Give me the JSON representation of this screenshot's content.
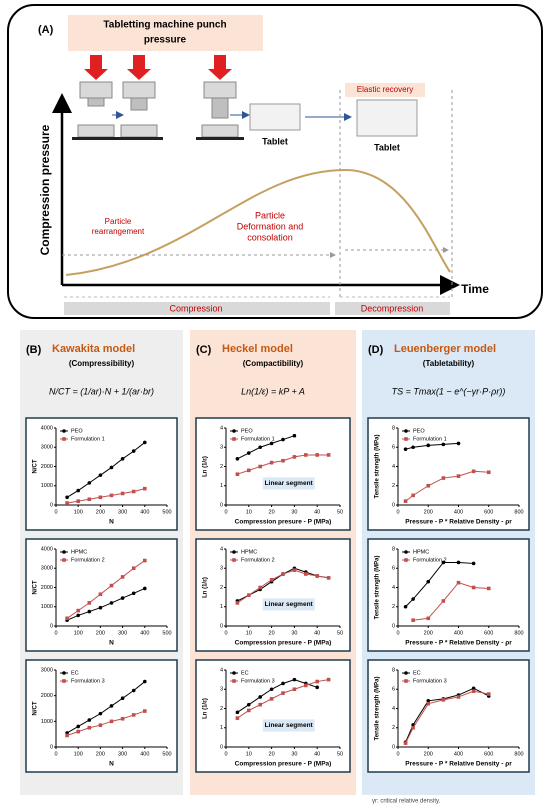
{
  "panel_a": {
    "label": "(A)",
    "title": [
      "Tabletting machine punch",
      "pressure"
    ],
    "y_axis": "Compression pressure",
    "x_axis": "Time",
    "tablet_1": "Tablet",
    "elastic_recovery": "Elastic recovery",
    "tablet_2": "Tablet",
    "phase_1": [
      "Particle",
      "rearrangement"
    ],
    "phase_2": [
      "Particle",
      "Deformation and",
      "consolation"
    ],
    "stage_1": "Compression",
    "stage_2": "Decompression"
  },
  "columns": [
    {
      "label": "(B)",
      "title": "Kawakita model",
      "subtitle": "(Compressibility)",
      "equation": "N/CT = (1/ar)·N + 1/(ar·br)",
      "charts": [
        {
          "xlabel": "N",
          "ylabel": "N/CT",
          "xlim": [
            0,
            500
          ],
          "xticks": [
            0,
            100,
            200,
            300,
            400,
            500
          ],
          "ylim": [
            0,
            4000
          ],
          "yticks": [
            0,
            1000,
            2000,
            3000,
            4000
          ],
          "series": [
            {
              "name": "PEO",
              "color": "#000000",
              "x": [
                50,
                100,
                150,
                200,
                250,
                300,
                350,
                400
              ],
              "values": [
                400,
                750,
                1150,
                1550,
                1950,
                2400,
                2800,
                3250
              ]
            },
            {
              "name": "Formulation 1",
              "color": "#c0504d",
              "x": [
                50,
                100,
                150,
                200,
                250,
                300,
                350,
                400
              ],
              "values": [
                100,
                200,
                300,
                400,
                500,
                600,
                700,
                850
              ]
            }
          ]
        },
        {
          "xlabel": "N",
          "ylabel": "N/CT",
          "xlim": [
            0,
            500
          ],
          "xticks": [
            0,
            100,
            200,
            300,
            400,
            500
          ],
          "ylim": [
            0,
            4000
          ],
          "yticks": [
            0,
            1000,
            2000,
            3000,
            4000
          ],
          "series": [
            {
              "name": "HPMC",
              "color": "#000000",
              "x": [
                50,
                100,
                150,
                200,
                250,
                300,
                350,
                400
              ],
              "values": [
                300,
                550,
                750,
                950,
                1200,
                1450,
                1700,
                1950
              ]
            },
            {
              "name": "Formulation 2",
              "color": "#c0504d",
              "x": [
                50,
                100,
                150,
                200,
                250,
                300,
                350,
                400
              ],
              "values": [
                400,
                800,
                1200,
                1650,
                2100,
                2550,
                3000,
                3400
              ]
            }
          ]
        },
        {
          "xlabel": "N",
          "ylabel": "N/CT",
          "xlim": [
            0,
            500
          ],
          "xticks": [
            0,
            100,
            200,
            300,
            400,
            500
          ],
          "ylim": [
            0,
            3000
          ],
          "yticks": [
            0,
            1000,
            2000,
            3000
          ],
          "series": [
            {
              "name": "EC",
              "color": "#000000",
              "x": [
                50,
                100,
                150,
                200,
                250,
                300,
                350,
                400
              ],
              "values": [
                550,
                800,
                1050,
                1300,
                1600,
                1900,
                2200,
                2550
              ]
            },
            {
              "name": "Formulation 3",
              "color": "#c0504d",
              "x": [
                50,
                100,
                150,
                200,
                250,
                300,
                350,
                400
              ],
              "values": [
                450,
                600,
                750,
                850,
                1000,
                1100,
                1250,
                1400
              ]
            }
          ]
        }
      ]
    },
    {
      "label": "(C)",
      "title": "Heckel model",
      "subtitle": "(Compactibility)",
      "equation": "Ln(1/ε) = kP + A",
      "charts": [
        {
          "xlabel": "Compression presure - P (MPa)",
          "ylabel": "Ln (1/ε)",
          "xlim": [
            0,
            50
          ],
          "xticks": [
            0,
            10,
            20,
            30,
            40,
            50
          ],
          "ylim": [
            0,
            4
          ],
          "yticks": [
            0,
            1,
            2,
            3,
            4
          ],
          "annotation": "Linear segment",
          "series": [
            {
              "name": "PEO",
              "color": "#000000",
              "x": [
                5,
                10,
                15,
                20,
                25,
                30
              ],
              "values": [
                2.4,
                2.7,
                3.0,
                3.2,
                3.4,
                3.6
              ]
            },
            {
              "name": "Formulation 1",
              "color": "#c0504d",
              "x": [
                5,
                10,
                15,
                20,
                25,
                30,
                35,
                40,
                45
              ],
              "values": [
                1.6,
                1.8,
                2.0,
                2.2,
                2.3,
                2.5,
                2.6,
                2.6,
                2.6
              ]
            }
          ]
        },
        {
          "xlabel": "Compression presure - P (MPa)",
          "ylabel": "Ln (1/ε)",
          "xlim": [
            0,
            50
          ],
          "xticks": [
            0,
            10,
            20,
            30,
            40,
            50
          ],
          "ylim": [
            0,
            4
          ],
          "yticks": [
            0,
            1,
            2,
            3,
            4
          ],
          "annotation": "Linear segment",
          "series": [
            {
              "name": "HPMC",
              "color": "#000000",
              "x": [
                5,
                10,
                15,
                20,
                25,
                30,
                35,
                40,
                45
              ],
              "values": [
                1.3,
                1.6,
                1.9,
                2.3,
                2.7,
                3.0,
                2.8,
                2.6,
                2.5
              ]
            },
            {
              "name": "Formulation 2",
              "color": "#c0504d",
              "x": [
                5,
                10,
                15,
                20,
                25,
                30,
                35,
                40,
                45
              ],
              "values": [
                1.2,
                1.6,
                2.0,
                2.4,
                2.7,
                2.9,
                2.7,
                2.6,
                2.5
              ]
            }
          ]
        },
        {
          "xlabel": "Compression presure - P (MPa)",
          "ylabel": "Ln (1/ε)",
          "xlim": [
            0,
            50
          ],
          "xticks": [
            0,
            10,
            20,
            30,
            40,
            50
          ],
          "ylim": [
            0,
            4
          ],
          "yticks": [
            0,
            1,
            2,
            3,
            4
          ],
          "annotation": "Linear segment",
          "series": [
            {
              "name": "EC",
              "color": "#000000",
              "x": [
                5,
                10,
                15,
                20,
                25,
                30,
                35,
                40
              ],
              "values": [
                1.8,
                2.2,
                2.6,
                3.0,
                3.3,
                3.5,
                3.3,
                3.1
              ]
            },
            {
              "name": "Formulation 3",
              "color": "#c0504d",
              "x": [
                5,
                10,
                15,
                20,
                25,
                30,
                35,
                40,
                45
              ],
              "values": [
                1.5,
                1.9,
                2.2,
                2.5,
                2.8,
                3.0,
                3.2,
                3.4,
                3.5
              ]
            }
          ]
        }
      ]
    },
    {
      "label": "(D)",
      "title": "Leuenberger model",
      "subtitle": "(Tabletability)",
      "equation": "TS = Tmax(1 − e^(−γr·P·ρr))",
      "charts": [
        {
          "xlabel": "Pressure - P * Relative Density - ρr",
          "ylabel": "Tensile strength (MPa)",
          "xlim": [
            0,
            800
          ],
          "xticks": [
            0,
            200,
            400,
            600,
            800
          ],
          "ylim": [
            0,
            8
          ],
          "yticks": [
            0,
            2,
            4,
            6,
            8
          ],
          "series": [
            {
              "name": "PEO",
              "color": "#000000",
              "x": [
                50,
                100,
                200,
                300,
                400
              ],
              "values": [
                5.8,
                6.0,
                6.2,
                6.3,
                6.4
              ]
            },
            {
              "name": "Formulation 1",
              "color": "#c0504d",
              "x": [
                50,
                100,
                200,
                300,
                400,
                500,
                600
              ],
              "values": [
                0.4,
                1.0,
                2.0,
                2.8,
                3.0,
                3.5,
                3.4
              ]
            }
          ]
        },
        {
          "xlabel": "Pressure - P * Relative Density - ρr",
          "ylabel": "Tensile strength (MPa)",
          "xlim": [
            0,
            800
          ],
          "xticks": [
            0,
            200,
            400,
            600,
            800
          ],
          "ylim": [
            0,
            8
          ],
          "yticks": [
            0,
            2,
            4,
            6,
            8
          ],
          "series": [
            {
              "name": "HPMC",
              "color": "#000000",
              "x": [
                50,
                100,
                200,
                300,
                400,
                500
              ],
              "values": [
                2.0,
                2.8,
                4.6,
                6.6,
                6.6,
                6.5
              ]
            },
            {
              "name": "Formulation 2",
              "color": "#c0504d",
              "x": [
                100,
                200,
                300,
                400,
                500,
                600
              ],
              "values": [
                0.6,
                0.8,
                2.6,
                4.5,
                4.0,
                3.9
              ]
            }
          ]
        },
        {
          "xlabel": "Pressure - P * Relative Density - ρr",
          "ylabel": "Tensile strength (MPa)",
          "xlim": [
            0,
            800
          ],
          "xticks": [
            0,
            200,
            400,
            600,
            800
          ],
          "ylim": [
            0,
            8
          ],
          "yticks": [
            0,
            2,
            4,
            6,
            8
          ],
          "series": [
            {
              "name": "EC",
              "color": "#000000",
              "x": [
                50,
                100,
                200,
                300,
                400,
                500,
                600
              ],
              "values": [
                0.5,
                2.3,
                4.8,
                5.0,
                5.4,
                6.1,
                5.3
              ]
            },
            {
              "name": "Formulation 3",
              "color": "#c0504d",
              "x": [
                50,
                100,
                200,
                300,
                400,
                500,
                600
              ],
              "values": [
                0.4,
                2.0,
                4.5,
                4.9,
                5.2,
                5.8,
                5.5
              ]
            }
          ]
        }
      ]
    }
  ],
  "footnote": "γr: critical relative density."
}
